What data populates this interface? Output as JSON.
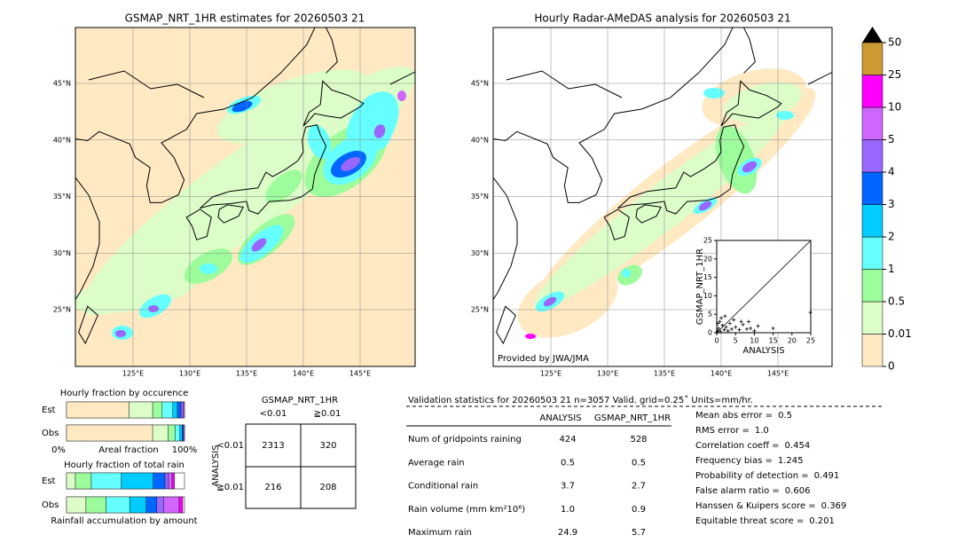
{
  "left_map": {
    "title": "GSMAP_NRT_1HR estimates for 20260503 21",
    "lon_labels": [
      "125°E",
      "130°E",
      "135°E",
      "140°E",
      "145°E"
    ],
    "lat_labels": [
      "45°N",
      "40°N",
      "35°N",
      "30°N",
      "25°N"
    ]
  },
  "right_map": {
    "title": "Hourly Radar-AMeDAS analysis for 20260503 21",
    "lon_labels": [
      "125°E",
      "130°E",
      "135°E",
      "140°E",
      "145°E"
    ],
    "lat_labels": [
      "45°N",
      "40°N",
      "35°N",
      "30°N",
      "25°N"
    ],
    "credit": "Provided by JWA/JMA",
    "scatter": {
      "xlabel": "ANALYSIS",
      "ylabel": "GSMAP_NRT_1HR",
      "xlim": [
        0,
        25
      ],
      "ylim": [
        0,
        25
      ],
      "xticks": [
        0,
        5,
        10,
        15,
        20,
        25
      ],
      "yticks": [
        0,
        5,
        10,
        15,
        20,
        25
      ],
      "x": [
        0.2,
        0.5,
        1,
        1.5,
        2,
        0.3,
        2.5,
        3,
        0.8,
        4,
        3.5,
        5,
        6,
        7,
        8,
        9,
        10,
        4.5,
        6.5,
        1.2,
        2.2,
        8.5,
        15,
        24.9,
        0.1,
        11
      ],
      "y": [
        0.5,
        1.2,
        0.3,
        2,
        0.8,
        2.5,
        1.5,
        0.5,
        3,
        1,
        2.5,
        1.5,
        0.8,
        2.2,
        1,
        1.2,
        0.5,
        3.5,
        3,
        4,
        4.5,
        3,
        1.2,
        5.5,
        0.1,
        1.8
      ]
    }
  },
  "colorbar": {
    "ticks": [
      0,
      0.01,
      0.5,
      1,
      2,
      3,
      4,
      5,
      10,
      25,
      50
    ],
    "colors": [
      "#fee9c3",
      "#dcfcc8",
      "#9dfc9b",
      "#66ffff",
      "#00ccff",
      "#0066ff",
      "#9966ff",
      "#d066ff",
      "#ff00ff",
      "#cc9933"
    ],
    "extend_color": "#000000"
  },
  "occurrence": {
    "title": "Hourly fraction by occurence",
    "rows": [
      "Est",
      "Obs"
    ],
    "left_label": "0%",
    "center_label": "Areal fraction",
    "right_label": "100%",
    "values": [
      [
        0.53,
        0.2,
        0.08,
        0.09,
        0.04,
        0.03,
        0.02,
        0.01
      ],
      [
        0.73,
        0.13,
        0.06,
        0.04,
        0.02,
        0.01,
        0.01
      ]
    ]
  },
  "total_rain": {
    "title": "Hourly fraction of total rain",
    "rows": [
      "Est",
      "Obs"
    ],
    "bottom_label": "Rainfall accumulation by amount",
    "values": [
      [
        0.075,
        0.135,
        0.255,
        0.27,
        0.1,
        0.03,
        0.03,
        0.02
      ],
      [
        0.165,
        0.17,
        0.2,
        0.14,
        0.09,
        0.06,
        0.13,
        0.03
      ]
    ]
  },
  "contingency": {
    "header": "GSMAP_NRT_1HR",
    "col_labels": [
      "<0.01",
      "≧0.01"
    ],
    "row_title": "ANALYSIS",
    "row_labels": [
      "<0.01",
      "≧0.01"
    ],
    "cells": [
      [
        2313,
        320
      ],
      [
        216,
        208
      ]
    ]
  },
  "validation": {
    "header": "Validation statistics for 20260503 21  n=3057 Valid. grid=0.25˚ Units=mm/hr.",
    "columns": [
      "ANALYSIS",
      "GSMAP_NRT_1HR"
    ],
    "rows": [
      {
        "label": "Num of gridpoints raining",
        "values": [
          "424",
          "528"
        ]
      },
      {
        "label": "Average rain",
        "values": [
          "0.5",
          "0.5"
        ]
      },
      {
        "label": "Conditional rain",
        "values": [
          "3.7",
          "2.7"
        ]
      },
      {
        "label": "Rain volume (mm km²10⁶)",
        "values": [
          "1.0",
          "0.9"
        ]
      },
      {
        "label": "Maximum rain",
        "values": [
          "24.9",
          "5.7"
        ]
      }
    ],
    "scores": [
      {
        "label": "Mean abs error =",
        "value": "0.5"
      },
      {
        "label": "RMS error =",
        "value": "1.0"
      },
      {
        "label": "Correlation coeff =",
        "value": "0.454"
      },
      {
        "label": "Frequency bias =",
        "value": "1.245"
      },
      {
        "label": "Probability of detection =",
        "value": "0.491"
      },
      {
        "label": "False alarm ratio =",
        "value": "0.606"
      },
      {
        "label": "Hanssen & Kuipers score =",
        "value": "0.369"
      },
      {
        "label": "Equitable threat score =",
        "value": "0.201"
      }
    ]
  }
}
